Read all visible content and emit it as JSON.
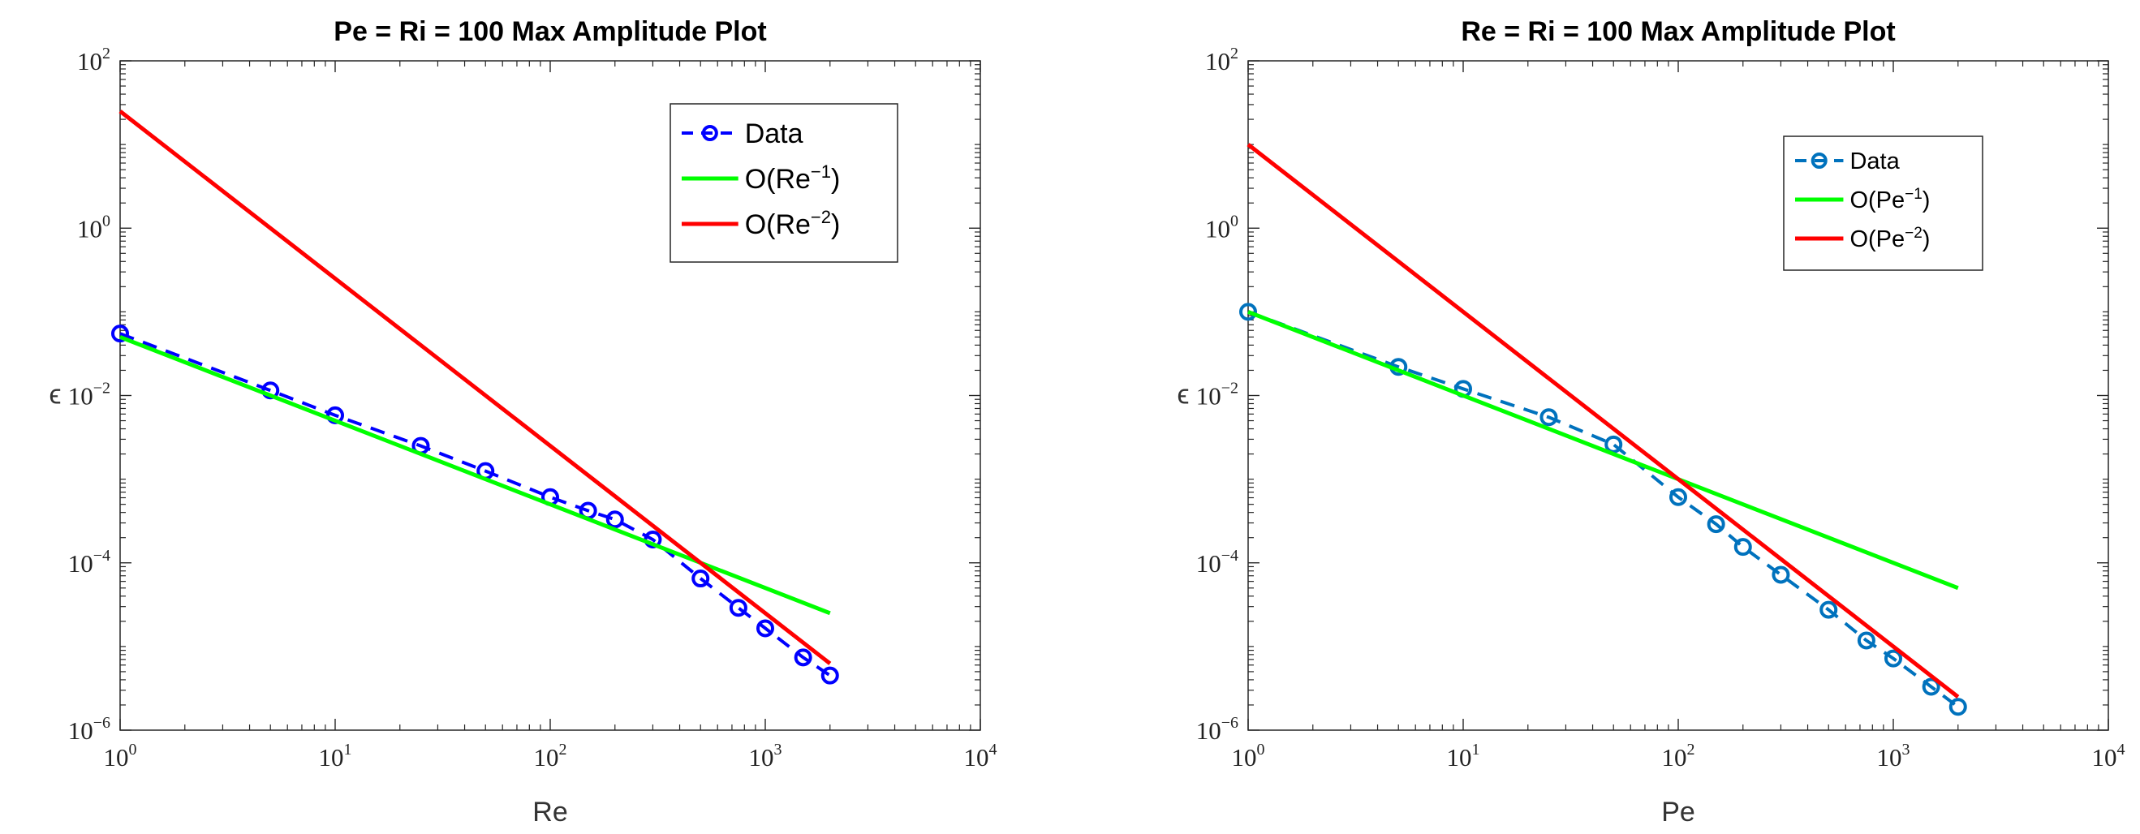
{
  "chart_data": [
    {
      "type": "line",
      "scale": "loglog",
      "title": "Pe = Ri = 100 Max Amplitude Plot",
      "xlabel": "Re",
      "ylabel": "ϵ",
      "xlim": [
        1,
        10000
      ],
      "ylim": [
        1e-06,
        100
      ],
      "grid": false,
      "legend_position": "top-right",
      "x_ticks": [
        {
          "value": 1,
          "base": "10",
          "exp": "0"
        },
        {
          "value": 10,
          "base": "10",
          "exp": "1"
        },
        {
          "value": 100,
          "base": "10",
          "exp": "2"
        },
        {
          "value": 1000,
          "base": "10",
          "exp": "3"
        },
        {
          "value": 10000,
          "base": "10",
          "exp": "4"
        }
      ],
      "y_ticks": [
        {
          "value": 1e-06,
          "base": "10",
          "exp": "−6"
        },
        {
          "value": 0.0001,
          "base": "10",
          "exp": "−4"
        },
        {
          "value": 0.01,
          "base": "10",
          "exp": "−2"
        },
        {
          "value": 1,
          "base": "10",
          "exp": "0"
        },
        {
          "value": 100,
          "base": "10",
          "exp": "2"
        }
      ],
      "series": [
        {
          "name": "Data",
          "legend_label": "Data",
          "legend_sup": "",
          "legend_suffix": "",
          "style": "dashed-circle",
          "color": "#0000ff",
          "x": [
            1,
            5,
            10,
            25,
            50,
            100,
            150,
            200,
            300,
            500,
            750,
            1000,
            1500,
            2000
          ],
          "y": [
            0.055,
            0.0115,
            0.0058,
            0.0025,
            0.00125,
            0.00061,
            0.00042,
            0.00033,
            0.00019,
            6.5e-05,
            2.9e-05,
            1.65e-05,
            7.4e-06,
            4.5e-06
          ]
        },
        {
          "name": "O(Re^-1)",
          "legend_label": "O(Re",
          "legend_sup": "−1",
          "legend_suffix": ")",
          "style": "solid",
          "color": "#00ff00",
          "x": [
            1,
            2000
          ],
          "y": [
            0.05,
            2.5e-05
          ]
        },
        {
          "name": "O(Re^-2)",
          "legend_label": "O(Re",
          "legend_sup": "−2",
          "legend_suffix": ")",
          "style": "solid",
          "color": "#ff0000",
          "x": [
            1,
            2000
          ],
          "y": [
            25,
            6.25e-06
          ]
        }
      ]
    },
    {
      "type": "line",
      "scale": "loglog",
      "title": "Re = Ri = 100 Max Amplitude Plot",
      "xlabel": "Pe",
      "ylabel": "ϵ",
      "xlim": [
        1,
        10000
      ],
      "ylim": [
        1e-06,
        100
      ],
      "grid": false,
      "legend_position": "top-right",
      "x_ticks": [
        {
          "value": 1,
          "base": "10",
          "exp": "0"
        },
        {
          "value": 10,
          "base": "10",
          "exp": "1"
        },
        {
          "value": 100,
          "base": "10",
          "exp": "2"
        },
        {
          "value": 1000,
          "base": "10",
          "exp": "3"
        },
        {
          "value": 10000,
          "base": "10",
          "exp": "4"
        }
      ],
      "y_ticks": [
        {
          "value": 1e-06,
          "base": "10",
          "exp": "−6"
        },
        {
          "value": 0.0001,
          "base": "10",
          "exp": "−4"
        },
        {
          "value": 0.01,
          "base": "10",
          "exp": "−2"
        },
        {
          "value": 1,
          "base": "10",
          "exp": "0"
        },
        {
          "value": 100,
          "base": "10",
          "exp": "2"
        }
      ],
      "series": [
        {
          "name": "Data",
          "legend_label": "Data",
          "legend_sup": "",
          "legend_suffix": "",
          "style": "dashed-circle",
          "color": "#0072bd",
          "x": [
            1,
            5,
            10,
            25,
            50,
            100,
            150,
            200,
            300,
            500,
            750,
            1000,
            1500,
            2000
          ],
          "y": [
            0.1,
            0.022,
            0.012,
            0.0055,
            0.0026,
            0.00061,
            0.00029,
            0.000155,
            7.2e-05,
            2.75e-05,
            1.18e-05,
            7.2e-06,
            3.3e-06,
            1.9e-06
          ]
        },
        {
          "name": "O(Pe^-1)",
          "legend_label": "O(Pe",
          "legend_sup": "−1",
          "legend_suffix": ")",
          "style": "solid",
          "color": "#00ff00",
          "x": [
            1,
            2000
          ],
          "y": [
            0.1,
            5e-05
          ]
        },
        {
          "name": "O(Pe^-2)",
          "legend_label": "O(Pe",
          "legend_sup": "−2",
          "legend_suffix": ")",
          "style": "solid",
          "color": "#ff0000",
          "x": [
            1,
            2000
          ],
          "y": [
            10,
            2.5e-06
          ]
        }
      ]
    }
  ]
}
